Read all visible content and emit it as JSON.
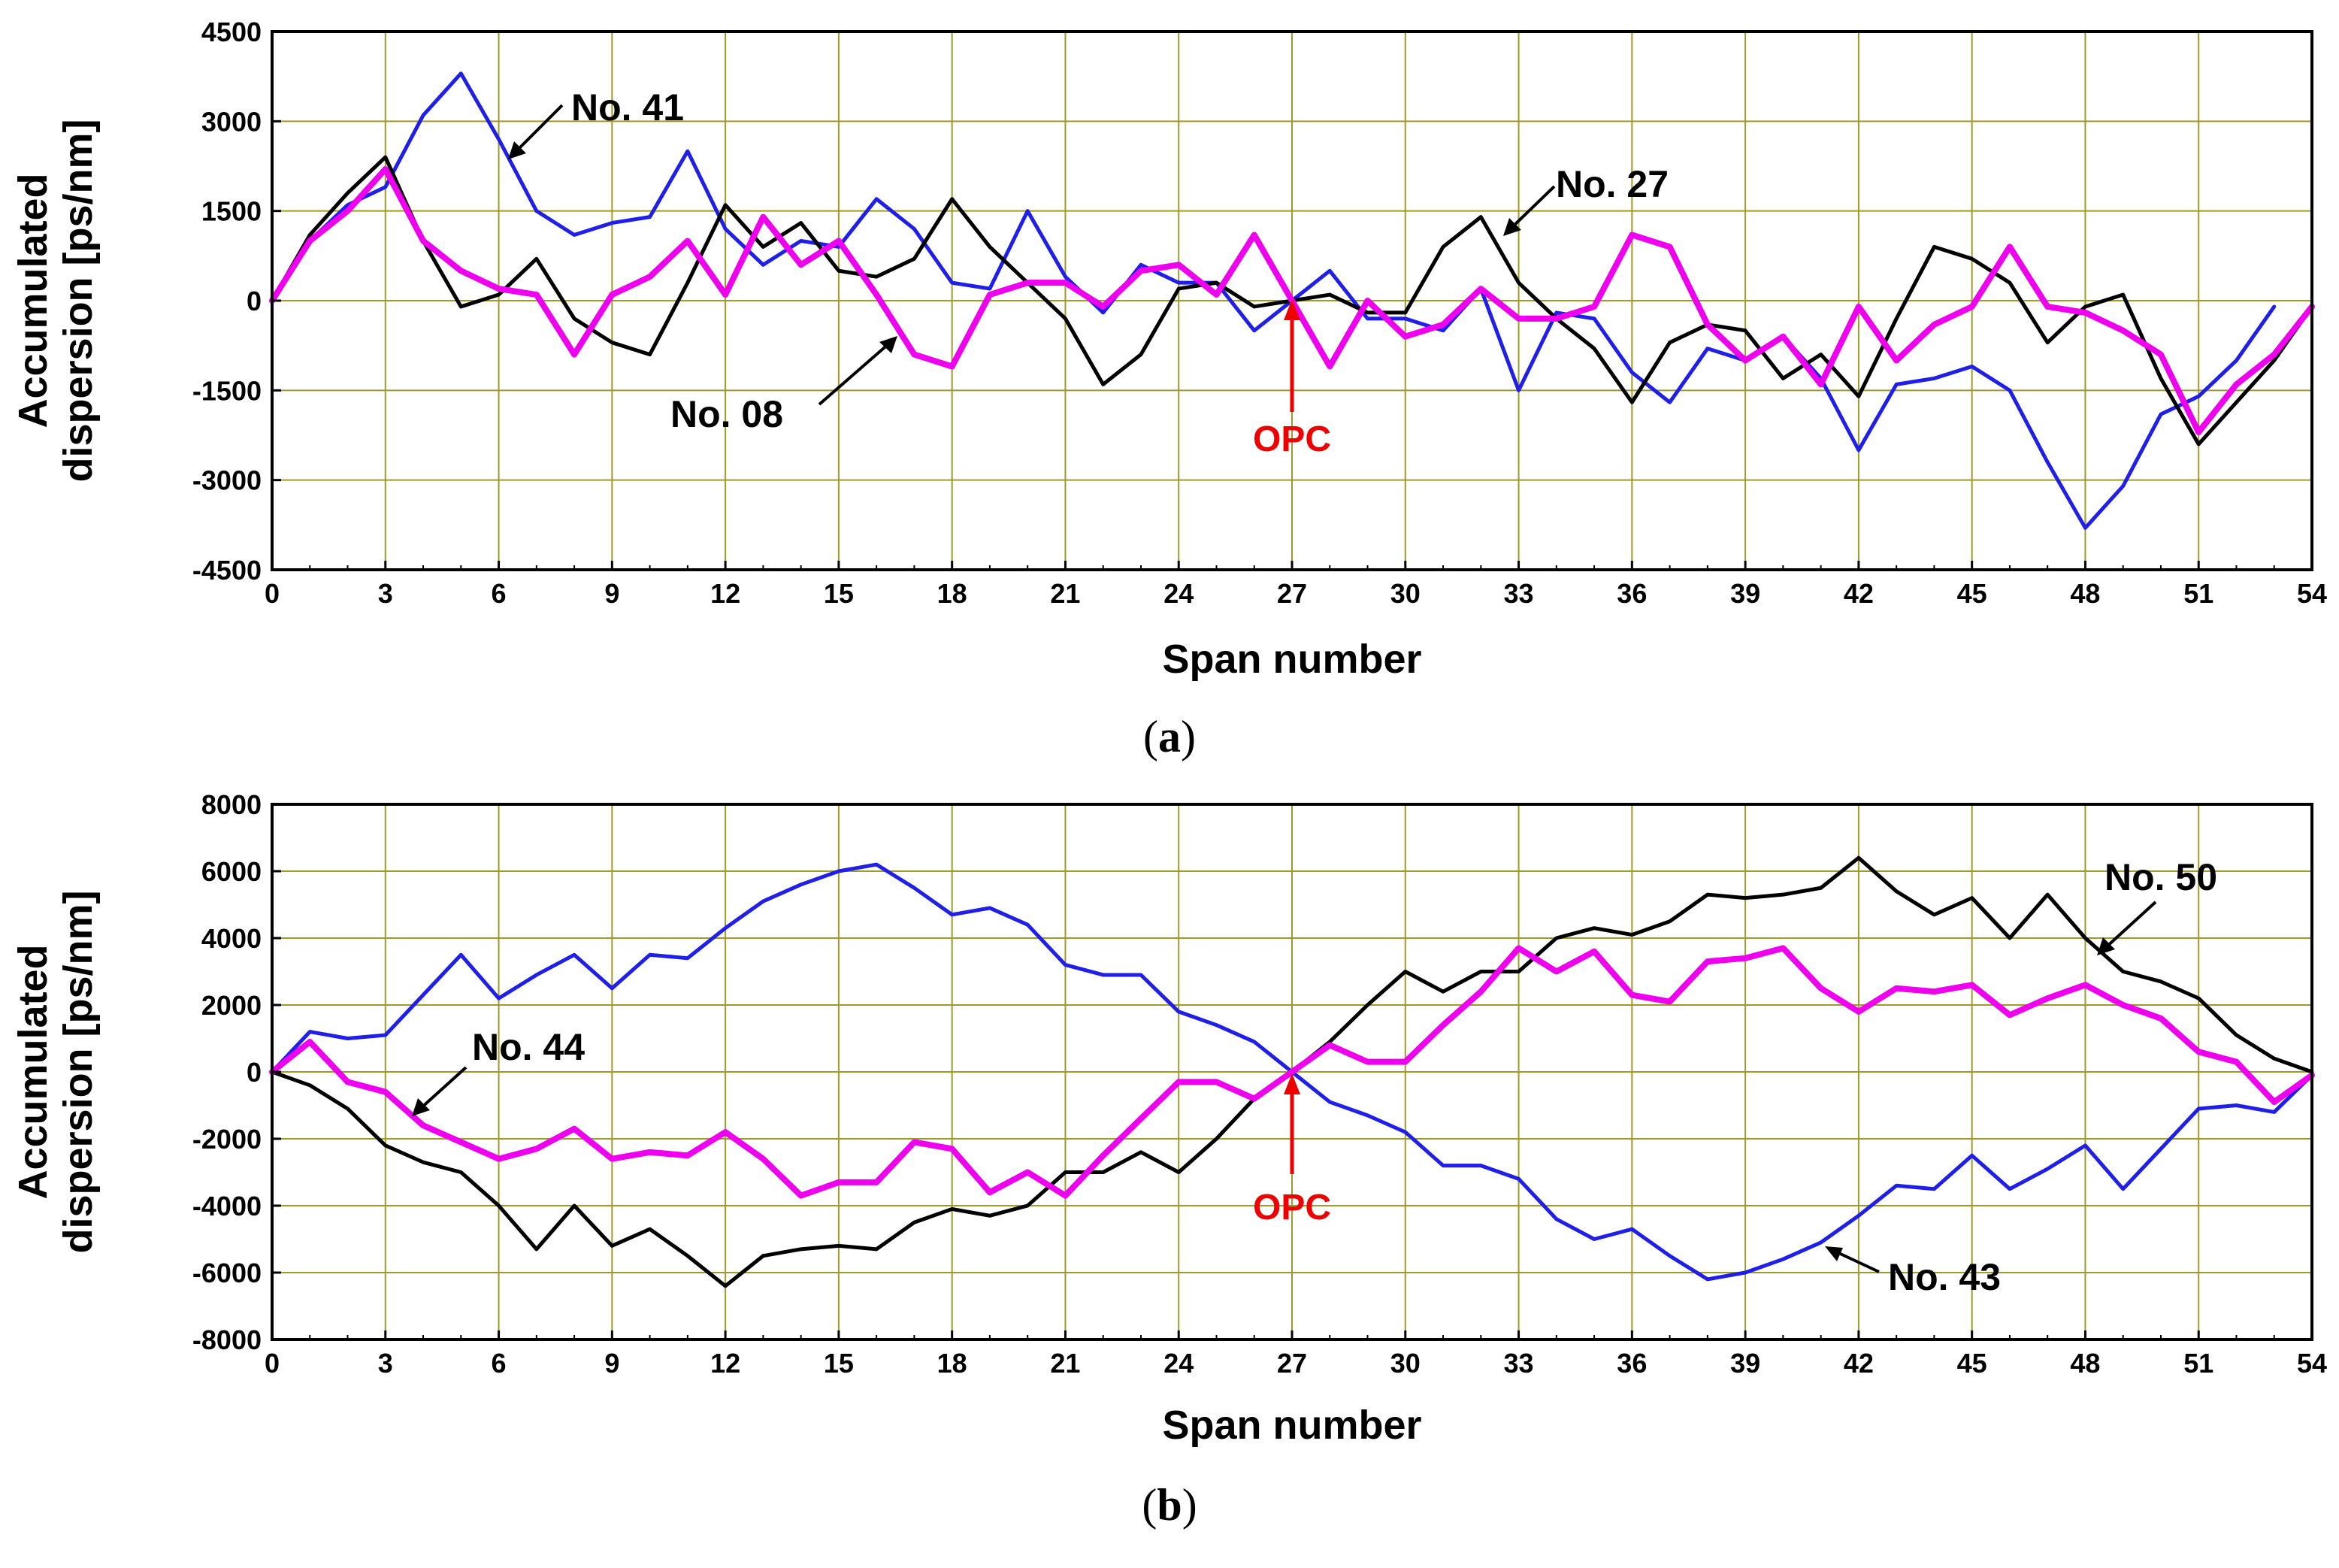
{
  "chart_data": [
    {
      "type": "line",
      "panel": "a",
      "caption": "a",
      "xlabel": "Span number",
      "ylabel_lines": [
        "Accumulated",
        "dispersion [ps/nm]"
      ],
      "xlim": [
        0,
        54
      ],
      "ylim": [
        -4500,
        4500
      ],
      "xticks": [
        0,
        3,
        6,
        9,
        12,
        15,
        18,
        21,
        24,
        27,
        30,
        33,
        36,
        39,
        42,
        45,
        48,
        51,
        54
      ],
      "yticks": [
        4500,
        3000,
        1500,
        0,
        -1500,
        -3000,
        -4500
      ],
      "grid": true,
      "series": [
        {
          "name": "No. 41",
          "color": "#1f1fe8",
          "values": [
            0,
            1000,
            1600,
            1900,
            3100,
            3800,
            2700,
            1500,
            1100,
            1300,
            1400,
            2500,
            1200,
            600,
            1000,
            900,
            1700,
            1200,
            300,
            200,
            1500,
            400,
            -200,
            600,
            300,
            300,
            -500,
            0,
            500,
            -300,
            -300,
            -500,
            200,
            -1500,
            -200,
            -300,
            -1200,
            -1700,
            -800,
            -1000,
            -600,
            -1300,
            -2500,
            -1400,
            -1300,
            -1100,
            -1500,
            -2700,
            -3800,
            -3100,
            -1900,
            -1600,
            -1000,
            -100
          ]
        },
        {
          "name": "No. 27",
          "color": "#000000",
          "values": [
            0,
            1100,
            1800,
            2400,
            1000,
            -100,
            100,
            700,
            -300,
            -700,
            -900,
            300,
            1600,
            900,
            1300,
            500,
            400,
            700,
            1700,
            900,
            300,
            -300,
            -1400,
            -900,
            200,
            300,
            -100,
            0,
            100,
            -200,
            -200,
            900,
            1400,
            300,
            -300,
            -800,
            -1700,
            -700,
            -400,
            -500,
            -1300,
            -900,
            -1600,
            -300,
            900,
            700,
            300,
            -700,
            -100,
            100,
            -1300,
            -2400,
            -1700,
            -1000,
            -100
          ]
        },
        {
          "name": "No. 08",
          "color": "#ee00ee",
          "values": [
            0,
            1000,
            1500,
            2200,
            1000,
            500,
            200,
            100,
            -900,
            100,
            400,
            1000,
            100,
            1400,
            600,
            1000,
            100,
            -900,
            -1100,
            100,
            300,
            300,
            -100,
            500,
            600,
            100,
            1100,
            0,
            -1100,
            0,
            -600,
            -400,
            200,
            -300,
            -300,
            -100,
            1100,
            900,
            -400,
            -1000,
            -600,
            -1400,
            -100,
            -1000,
            -400,
            -100,
            900,
            -100,
            -200,
            -500,
            -900,
            -2200,
            -1400,
            -900,
            -100
          ]
        }
      ],
      "annotations": [
        {
          "text": "No. 41",
          "series": "No. 41"
        },
        {
          "text": "No. 27",
          "series": "No. 27"
        },
        {
          "text": "No. 08",
          "series": "No. 08"
        },
        {
          "text": "OPC",
          "at_x": 27
        }
      ]
    },
    {
      "type": "line",
      "panel": "b",
      "caption": "b",
      "xlabel": "Span number",
      "ylabel_lines": [
        "Accumulated",
        "dispersion [ps/nm]"
      ],
      "xlim": [
        0,
        54
      ],
      "ylim": [
        -8000,
        8000
      ],
      "xticks": [
        0,
        3,
        6,
        9,
        12,
        15,
        18,
        21,
        24,
        27,
        30,
        33,
        36,
        39,
        42,
        45,
        48,
        51,
        54
      ],
      "yticks": [
        8000,
        6000,
        4000,
        2000,
        0,
        -2000,
        -4000,
        -6000,
        -8000
      ],
      "grid": true,
      "series": [
        {
          "name": "No. 43",
          "color": "#1f1fe8",
          "values": [
            0,
            1200,
            1000,
            1100,
            2300,
            3500,
            2200,
            2900,
            3500,
            2500,
            3500,
            3400,
            4300,
            5100,
            5600,
            6000,
            6200,
            5500,
            4700,
            4900,
            4400,
            3200,
            2900,
            2900,
            1800,
            1400,
            900,
            0,
            -900,
            -1300,
            -1800,
            -2800,
            -2800,
            -3200,
            -4400,
            -5000,
            -4700,
            -5500,
            -6200,
            -6000,
            -5600,
            -5100,
            -4300,
            -3400,
            -3500,
            -2500,
            -3500,
            -2900,
            -2200,
            -3500,
            -2300,
            -1100,
            -1000,
            -1200,
            -100
          ]
        },
        {
          "name": "No. 50",
          "color": "#000000",
          "values": [
            0,
            -400,
            -1100,
            -2200,
            -2700,
            -3000,
            -4000,
            -5300,
            -4000,
            -5200,
            -4700,
            -5500,
            -6400,
            -5500,
            -5300,
            -5200,
            -5300,
            -4500,
            -4100,
            -4300,
            -4000,
            -3000,
            -3000,
            -2400,
            -3000,
            -2000,
            -800,
            0,
            900,
            2000,
            3000,
            2400,
            3000,
            3000,
            4000,
            4300,
            4100,
            4500,
            5300,
            5200,
            5300,
            5500,
            6400,
            5400,
            4700,
            5200,
            4000,
            5300,
            4000,
            3000,
            2700,
            2200,
            1100,
            400,
            0
          ]
        },
        {
          "name": "No. 44",
          "color": "#ee00ee",
          "values": [
            0,
            900,
            -300,
            -600,
            -1600,
            -2100,
            -2600,
            -2300,
            -1700,
            -2600,
            -2400,
            -2500,
            -1800,
            -2600,
            -3700,
            -3300,
            -3300,
            -2100,
            -2300,
            -3600,
            -3000,
            -3700,
            -2500,
            -1400,
            -300,
            -300,
            -800,
            0,
            800,
            300,
            300,
            1400,
            2400,
            3700,
            3000,
            3600,
            2300,
            2100,
            3300,
            3400,
            3700,
            2500,
            1800,
            2500,
            2400,
            2600,
            1700,
            2200,
            2600,
            2000,
            1600,
            600,
            300,
            -900,
            -100
          ]
        }
      ],
      "annotations": [
        {
          "text": "No. 50",
          "series": "No. 50"
        },
        {
          "text": "No. 44",
          "series": "No. 44"
        },
        {
          "text": "No. 43",
          "series": "No. 43"
        },
        {
          "text": "OPC",
          "at_x": 27
        }
      ]
    }
  ]
}
